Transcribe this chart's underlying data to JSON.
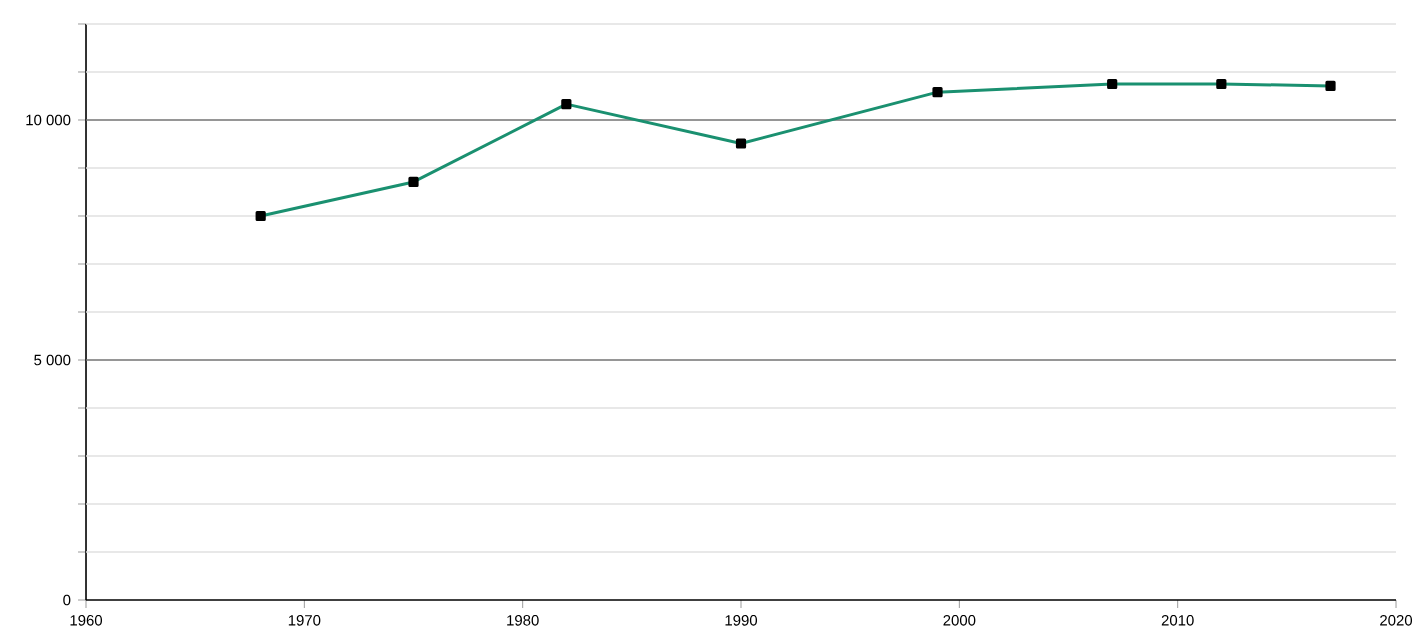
{
  "chart_data": {
    "type": "line",
    "x": [
      1968,
      1975,
      1982,
      1990,
      1999,
      2007,
      2012,
      2017
    ],
    "series": [
      {
        "color": "#1a9070",
        "values": [
          8000,
          8710,
          10330,
          9510,
          10580,
          10750,
          10750,
          10710
        ]
      }
    ],
    "xlim": [
      1960,
      2020
    ],
    "xticks": [
      1960,
      1970,
      1980,
      1990,
      2000,
      2010,
      2020
    ],
    "ylim": [
      0,
      12000
    ],
    "yticks": [
      0,
      {
        "value": 1000,
        "label": null
      },
      {
        "value": 2000,
        "label": null
      },
      {
        "value": 3000,
        "label": null
      },
      {
        "value": 4000,
        "label": null
      },
      {
        "value": 5000,
        "label": "5 000"
      },
      {
        "value": 6000,
        "label": null
      },
      {
        "value": 7000,
        "label": null
      },
      {
        "value": 8000,
        "label": null
      },
      {
        "value": 9000,
        "label": null
      },
      {
        "value": 10000,
        "label": "10 000"
      },
      {
        "value": 11000,
        "label": null
      },
      {
        "value": 12000,
        "label": null
      }
    ],
    "grid": "y",
    "marker": "square",
    "line_style": "solid"
  }
}
